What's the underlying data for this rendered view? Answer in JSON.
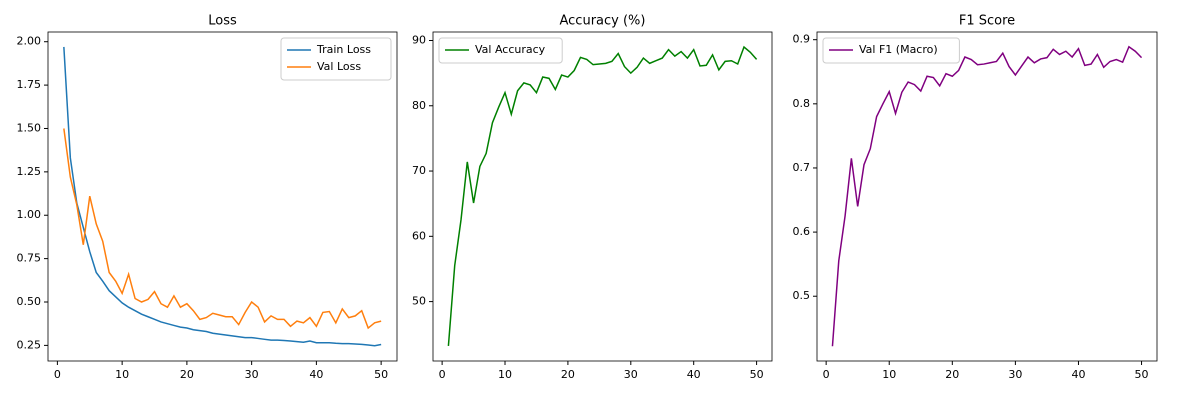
{
  "chart_data": [
    {
      "type": "line",
      "title": "Loss",
      "x": [
        1,
        2,
        3,
        4,
        5,
        6,
        7,
        8,
        9,
        10,
        11,
        12,
        13,
        14,
        15,
        16,
        17,
        18,
        19,
        20,
        21,
        22,
        23,
        24,
        25,
        26,
        27,
        28,
        29,
        30,
        31,
        32,
        33,
        34,
        35,
        36,
        37,
        38,
        39,
        40,
        41,
        42,
        43,
        44,
        45,
        46,
        47,
        48,
        49,
        50
      ],
      "series": [
        {
          "name": "Train Loss",
          "color": "#1f77b4",
          "values": [
            1.97,
            1.33,
            1.07,
            0.93,
            0.79,
            0.67,
            0.62,
            0.565,
            0.53,
            0.495,
            0.47,
            0.45,
            0.43,
            0.415,
            0.4,
            0.385,
            0.375,
            0.365,
            0.355,
            0.35,
            0.34,
            0.335,
            0.33,
            0.32,
            0.315,
            0.31,
            0.305,
            0.3,
            0.295,
            0.295,
            0.29,
            0.285,
            0.28,
            0.28,
            0.278,
            0.275,
            0.272,
            0.268,
            0.275,
            0.265,
            0.265,
            0.265,
            0.262,
            0.26,
            0.26,
            0.258,
            0.256,
            0.252,
            0.248,
            0.255
          ]
        },
        {
          "name": "Val Loss",
          "color": "#ff7f0e",
          "values": [
            1.5,
            1.22,
            1.06,
            0.83,
            1.11,
            0.95,
            0.85,
            0.67,
            0.62,
            0.55,
            0.66,
            0.52,
            0.5,
            0.515,
            0.56,
            0.49,
            0.47,
            0.535,
            0.47,
            0.49,
            0.45,
            0.4,
            0.41,
            0.435,
            0.425,
            0.415,
            0.415,
            0.37,
            0.44,
            0.5,
            0.47,
            0.385,
            0.42,
            0.4,
            0.4,
            0.36,
            0.39,
            0.38,
            0.41,
            0.36,
            0.44,
            0.445,
            0.38,
            0.46,
            0.41,
            0.42,
            0.45,
            0.35,
            0.38,
            0.39
          ]
        }
      ],
      "xlim": [
        -1.45,
        52.45
      ],
      "ylim": [
        0.16,
        2.056
      ],
      "xticks": [
        0,
        10,
        20,
        30,
        40,
        50
      ],
      "yticks": [
        0.25,
        {
          "value": 0.5,
          "label": "0.50"
        },
        0.75,
        {
          "value": 1,
          "label": "1.00"
        },
        1.25,
        {
          "value": 1.5,
          "label": "1.50"
        },
        1.75,
        {
          "value": 2,
          "label": "2.00"
        }
      ],
      "legend": "upper right"
    },
    {
      "type": "line",
      "title": "Accuracy (%)",
      "x": [
        1,
        2,
        3,
        4,
        5,
        6,
        7,
        8,
        9,
        10,
        11,
        12,
        13,
        14,
        15,
        16,
        17,
        18,
        19,
        20,
        21,
        22,
        23,
        24,
        25,
        26,
        27,
        28,
        29,
        30,
        31,
        32,
        33,
        34,
        35,
        36,
        37,
        38,
        39,
        40,
        41,
        42,
        43,
        44,
        45,
        46,
        47,
        48,
        49,
        50
      ],
      "series": [
        {
          "name": "Val Accuracy",
          "color": "#008000",
          "values": [
            43.2,
            55.5,
            62.5,
            71.4,
            65.1,
            70.7,
            72.7,
            77.4,
            79.8,
            82.0,
            78.7,
            82.3,
            83.5,
            83.2,
            82.0,
            84.4,
            84.2,
            82.5,
            84.7,
            84.4,
            85.4,
            87.4,
            87.1,
            86.3,
            86.4,
            86.5,
            86.8,
            88.0,
            86.0,
            85.0,
            85.9,
            87.3,
            86.5,
            86.9,
            87.3,
            88.6,
            87.6,
            88.3,
            87.3,
            88.6,
            86.1,
            86.2,
            87.8,
            85.5,
            86.8,
            86.9,
            86.4,
            89.0,
            88.2,
            87.1
          ]
        }
      ],
      "xlim": [
        -1.45,
        52.45
      ],
      "ylim": [
        40.9,
        91.3
      ],
      "xticks": [
        0,
        10,
        20,
        30,
        40,
        50
      ],
      "yticks": [
        50,
        60,
        70,
        80,
        90
      ],
      "legend": "upper left"
    },
    {
      "type": "line",
      "title": "F1 Score",
      "x": [
        1,
        2,
        3,
        4,
        5,
        6,
        7,
        8,
        9,
        10,
        11,
        12,
        13,
        14,
        15,
        16,
        17,
        18,
        19,
        20,
        21,
        22,
        23,
        24,
        25,
        26,
        27,
        28,
        29,
        30,
        31,
        32,
        33,
        34,
        35,
        36,
        37,
        38,
        39,
        40,
        41,
        42,
        43,
        44,
        45,
        46,
        47,
        48,
        49,
        50
      ],
      "series": [
        {
          "name": "Val F1 (Macro)",
          "color": "#800080",
          "values": [
            0.422,
            0.555,
            0.625,
            0.715,
            0.64,
            0.705,
            0.73,
            0.78,
            0.8,
            0.819,
            0.785,
            0.818,
            0.834,
            0.83,
            0.82,
            0.843,
            0.841,
            0.828,
            0.847,
            0.843,
            0.852,
            0.873,
            0.869,
            0.861,
            0.862,
            0.864,
            0.866,
            0.879,
            0.858,
            0.845,
            0.859,
            0.873,
            0.864,
            0.87,
            0.872,
            0.885,
            0.877,
            0.882,
            0.873,
            0.886,
            0.86,
            0.862,
            0.877,
            0.857,
            0.866,
            0.869,
            0.865,
            0.889,
            0.882,
            0.872
          ]
        }
      ],
      "xlim": [
        -1.45,
        52.45
      ],
      "ylim": [
        0.399,
        0.912
      ],
      "xticks": [
        0,
        10,
        20,
        30,
        40,
        50
      ],
      "yticks": [
        0.5,
        0.6,
        0.7,
        0.8,
        0.9
      ],
      "legend": "upper left"
    }
  ]
}
